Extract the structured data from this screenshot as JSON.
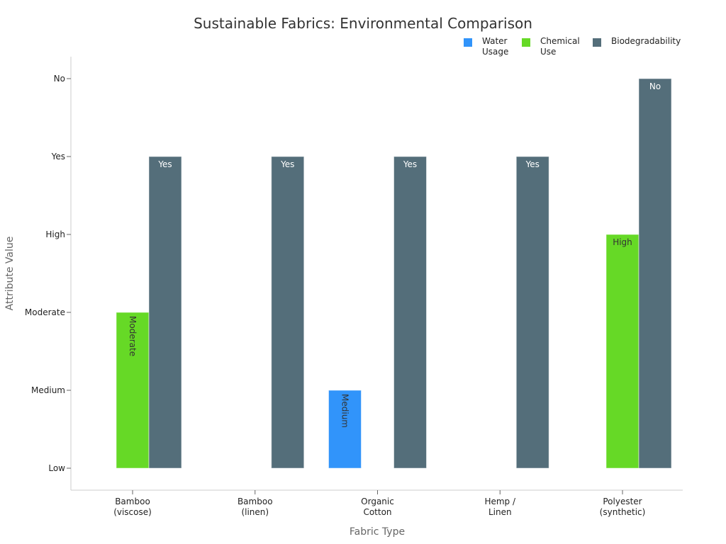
{
  "chart_data": {
    "type": "bar",
    "title": "Sustainable Fabrics: Environmental Comparison",
    "xlabel": "Fabric Type",
    "ylabel": "Attribute Value",
    "y_categories": [
      "Low",
      "Medium",
      "Moderate",
      "High",
      "Yes",
      "No"
    ],
    "categories": [
      [
        "Bamboo",
        "(viscose)"
      ],
      [
        "Bamboo",
        "(linen)"
      ],
      [
        "Organic",
        "Cotton"
      ],
      [
        "Hemp /",
        "Linen"
      ],
      [
        "Polyester",
        "(synthetic)"
      ]
    ],
    "series": [
      {
        "name": [
          "Water",
          "Usage"
        ],
        "color": "#3194fa",
        "values": [
          null,
          null,
          "Medium",
          null,
          null
        ]
      },
      {
        "name": [
          "Chemical",
          "Use"
        ],
        "color": "#66d926",
        "values": [
          "Moderate",
          null,
          null,
          null,
          "High"
        ]
      },
      {
        "name": [
          "Biodegradability"
        ],
        "color": "#546e7a",
        "values": [
          "Yes",
          "Yes",
          "Yes",
          "Yes",
          "No"
        ]
      }
    ],
    "grid": false,
    "legend_position": "top-right"
  }
}
